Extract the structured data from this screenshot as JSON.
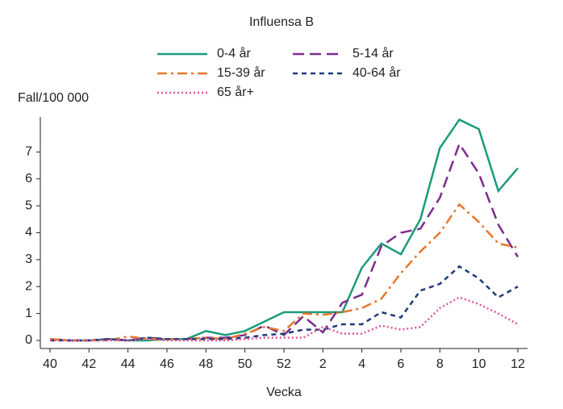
{
  "chart_data": {
    "type": "line",
    "title": "Influensa B",
    "ylabel": "Fall/100 000",
    "xlabel": "Vecka",
    "categories": [
      "40",
      null,
      "42",
      null,
      "44",
      null,
      "46",
      null,
      "48",
      null,
      "50",
      null,
      "52",
      null,
      "2",
      null,
      "4",
      null,
      "6",
      null,
      "8",
      null,
      "10",
      null,
      "12"
    ],
    "ylim": [
      -0.3,
      8.3
    ],
    "yticks": [
      0,
      1,
      2,
      3,
      4,
      5,
      6,
      7
    ],
    "grid": false,
    "series": [
      {
        "name": "0-4 år",
        "color": "#1a9b7b",
        "style": "solid",
        "values": [
          0.05,
          0,
          0,
          0.05,
          0,
          0,
          0.05,
          0.05,
          0.35,
          0.2,
          0.35,
          0.7,
          1.05,
          1.05,
          1.05,
          1.05,
          2.7,
          3.6,
          3.2,
          4.5,
          7.15,
          8.2,
          7.85,
          5.55,
          6.4
        ]
      },
      {
        "name": "5-14 år",
        "color": "#7b2d8b",
        "style": "longdash",
        "values": [
          0.05,
          0,
          0,
          0.05,
          0,
          0.1,
          0.05,
          0.05,
          0.1,
          0.1,
          0.2,
          0.55,
          0.2,
          0.9,
          0.3,
          1.4,
          1.7,
          3.5,
          4.0,
          4.15,
          5.3,
          7.3,
          6.2,
          4.3,
          3.1
        ]
      },
      {
        "name": "15-39 år",
        "color": "#e8762b",
        "style": "dashdot",
        "values": [
          0.05,
          0,
          0,
          0,
          0.15,
          0.05,
          0.05,
          0.05,
          0.1,
          0.05,
          0.25,
          0.5,
          0.35,
          1.0,
          0.95,
          1.05,
          1.2,
          1.55,
          2.5,
          3.3,
          4.0,
          5.05,
          4.4,
          3.6,
          3.45
        ]
      },
      {
        "name": "40-64 år",
        "color": "#1f3b7a",
        "style": "shortdash",
        "values": [
          0,
          0,
          0,
          0.05,
          0,
          0.1,
          0.05,
          0.05,
          0.05,
          0.05,
          0.1,
          0.2,
          0.25,
          0.4,
          0.4,
          0.6,
          0.6,
          1.05,
          0.85,
          1.85,
          2.1,
          2.75,
          2.3,
          1.6,
          2.0
        ]
      },
      {
        "name": "65 år+",
        "color": "#e0559b",
        "style": "dot",
        "values": [
          0,
          0,
          0,
          0,
          0,
          0.05,
          0,
          0,
          0,
          0,
          0.05,
          0.1,
          0.1,
          0.1,
          0.5,
          0.25,
          0.25,
          0.55,
          0.4,
          0.5,
          1.2,
          1.6,
          1.35,
          1.0,
          0.6
        ]
      }
    ]
  }
}
